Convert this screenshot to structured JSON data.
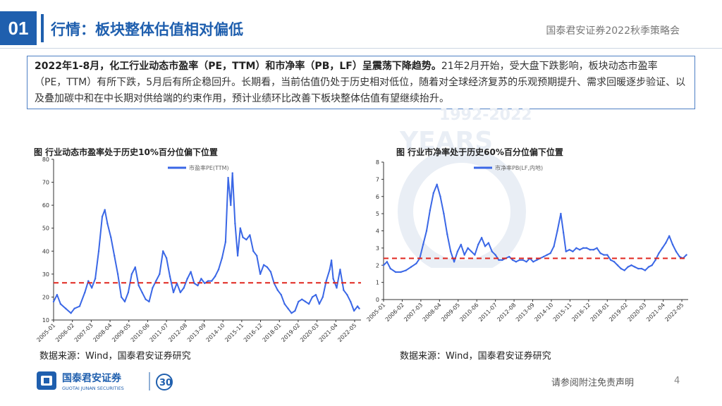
{
  "header": {
    "section_number": "01",
    "title": "行情：板块整体估值相对偏低",
    "brand": "国泰君安证券2022秋季策略会"
  },
  "summary": {
    "bold": "2022年1-8月，化工行业动态市盈率（PE，TTM）和市净率（PB，LF）呈震荡下降趋势。",
    "text": "21年2月开始，受大盘下跌影响，板块动态市盈率（PE，TTM）有所下跌，5月后有所企稳回升。长期看，当前估值仍处于历史相对低位，随着对全球经济复苏的乐观预期提升、需求回暖逐步验证、以及叠加碳中和在中长期对供给端的约束作用，预计业绩环比改善下板块整体估值有望继续抬升。"
  },
  "watermark": {
    "text": "1992-2022",
    "text2": "YEARS"
  },
  "chart_data": [
    {
      "type": "line",
      "title": "图  行业动态市盈率处于历史10%百分位偏下位置",
      "ylim": [
        10,
        80
      ],
      "yticks": [
        "10",
        "20",
        "30",
        "40",
        "50",
        "60",
        "70",
        "80"
      ],
      "xticks": [
        "2005-01",
        "2006-02",
        "2007-03",
        "2008-04",
        "2009-05",
        "2010-06",
        "2011-07",
        "2012-08",
        "2013-09",
        "2014-10",
        "2015-11",
        "2016-12",
        "2018-01",
        "2019-02",
        "2020-03",
        "2021-04",
        "2022-05"
      ],
      "series": [
        {
          "name": "市盈率PE(TTM)",
          "color": "#3a67e6",
          "x": [
            2005.0,
            2005.2,
            2005.4,
            2005.7,
            2006.0,
            2006.2,
            2006.5,
            2006.8,
            2007.0,
            2007.2,
            2007.4,
            2007.6,
            2007.8,
            2007.95,
            2008.1,
            2008.3,
            2008.5,
            2008.7,
            2008.9,
            2009.1,
            2009.3,
            2009.5,
            2009.7,
            2009.9,
            2010.1,
            2010.3,
            2010.5,
            2010.7,
            2010.9,
            2011.1,
            2011.3,
            2011.5,
            2011.7,
            2011.9,
            2012.1,
            2012.3,
            2012.5,
            2012.7,
            2012.9,
            2013.1,
            2013.3,
            2013.5,
            2013.7,
            2013.9,
            2014.1,
            2014.3,
            2014.5,
            2014.7,
            2014.9,
            2015.05,
            2015.2,
            2015.3,
            2015.45,
            2015.6,
            2015.75,
            2015.9,
            2016.1,
            2016.3,
            2016.5,
            2016.7,
            2016.9,
            2017.1,
            2017.3,
            2017.5,
            2017.7,
            2017.9,
            2018.1,
            2018.3,
            2018.5,
            2018.7,
            2018.9,
            2019.1,
            2019.3,
            2019.5,
            2019.7,
            2019.9,
            2020.1,
            2020.3,
            2020.5,
            2020.7,
            2020.9,
            2021.0,
            2021.1,
            2021.3,
            2021.5,
            2021.7,
            2021.9,
            2022.1,
            2022.3,
            2022.5,
            2022.6
          ],
          "values": [
            18,
            21,
            17,
            15,
            13,
            15,
            16,
            22,
            27,
            24,
            28,
            40,
            55,
            58,
            52,
            46,
            38,
            30,
            20,
            18,
            22,
            30,
            33,
            25,
            22,
            19,
            18,
            24,
            27,
            30,
            40,
            37,
            29,
            22,
            26,
            22,
            24,
            28,
            31,
            26,
            25,
            28,
            26,
            27,
            27,
            29,
            32,
            37,
            44,
            72,
            60,
            74,
            52,
            38,
            50,
            46,
            45,
            47,
            40,
            38,
            30,
            34,
            33,
            31,
            26,
            23,
            21,
            17,
            15,
            13,
            14,
            18,
            19,
            18,
            17,
            20,
            21,
            17,
            20,
            27,
            32,
            36,
            28,
            24,
            32,
            23,
            21,
            18,
            14,
            16,
            15
          ]
        }
      ],
      "reference_line": {
        "value": 26.2,
        "color": "#e0261e"
      }
    },
    {
      "type": "line",
      "title": "图  行业市净率处于历史60%百分位偏下位置",
      "ylim": [
        0,
        8
      ],
      "yticks": [
        "0",
        "1",
        "2",
        "3",
        "4",
        "5",
        "6",
        "7",
        "8"
      ],
      "xticks": [
        "2005-01",
        "2006-02",
        "2007-03",
        "2008-04",
        "2009-05",
        "2010-06",
        "2011-07",
        "2012-08",
        "2013-09",
        "2014-10",
        "2015-11",
        "2016-12",
        "2018-01",
        "2019-02",
        "2020-03",
        "2021-04",
        "2022-05"
      ],
      "series": [
        {
          "name": "市净率PB(LF,内地)",
          "color": "#3a67e6",
          "x": [
            2005.0,
            2005.2,
            2005.4,
            2005.7,
            2006.0,
            2006.3,
            2006.6,
            2006.9,
            2007.1,
            2007.3,
            2007.5,
            2007.7,
            2007.9,
            2008.1,
            2008.3,
            2008.5,
            2008.7,
            2008.9,
            2009.1,
            2009.3,
            2009.5,
            2009.7,
            2009.9,
            2010.1,
            2010.3,
            2010.5,
            2010.7,
            2010.9,
            2011.1,
            2011.3,
            2011.5,
            2011.7,
            2011.9,
            2012.1,
            2012.3,
            2012.5,
            2012.7,
            2012.9,
            2013.1,
            2013.3,
            2013.5,
            2013.7,
            2013.9,
            2014.1,
            2014.3,
            2014.5,
            2014.7,
            2014.9,
            2015.1,
            2015.3,
            2015.45,
            2015.6,
            2015.8,
            2016.0,
            2016.2,
            2016.4,
            2016.6,
            2016.8,
            2017.0,
            2017.2,
            2017.4,
            2017.6,
            2017.8,
            2018.0,
            2018.2,
            2018.4,
            2018.6,
            2018.8,
            2019.0,
            2019.2,
            2019.4,
            2019.6,
            2019.8,
            2020.0,
            2020.2,
            2020.4,
            2020.6,
            2020.8,
            2021.0,
            2021.2,
            2021.4,
            2021.6,
            2021.8,
            2022.0,
            2022.2,
            2022.4,
            2022.6
          ],
          "values": [
            2.0,
            2.2,
            1.8,
            1.6,
            1.6,
            1.7,
            1.9,
            2.1,
            2.4,
            3.2,
            4.0,
            5.2,
            6.2,
            6.7,
            6.0,
            5.0,
            3.8,
            2.8,
            2.2,
            2.8,
            3.2,
            2.6,
            3.0,
            2.8,
            2.6,
            3.2,
            3.6,
            3.1,
            3.3,
            2.8,
            2.6,
            2.3,
            2.3,
            2.4,
            2.5,
            2.3,
            2.2,
            2.3,
            2.3,
            2.2,
            2.4,
            2.2,
            2.3,
            2.4,
            2.5,
            2.6,
            2.7,
            3.1,
            4.0,
            5.0,
            3.9,
            2.8,
            2.9,
            2.8,
            3.0,
            2.9,
            3.0,
            3.0,
            2.9,
            2.9,
            3.0,
            2.7,
            2.6,
            2.6,
            2.3,
            2.2,
            2.0,
            1.8,
            1.7,
            1.9,
            2.0,
            1.9,
            1.8,
            1.8,
            1.7,
            1.9,
            2.0,
            2.3,
            2.7,
            3.0,
            3.3,
            3.7,
            3.2,
            2.8,
            2.5,
            2.4,
            2.6
          ]
        }
      ],
      "reference_line": {
        "value": 2.4,
        "color": "#e0261e"
      }
    }
  ],
  "sources": [
    "数据来源：Wind，国泰君安证券研究",
    "数据来源：Wind，国泰君安证券研究"
  ],
  "footer": {
    "logo_cn": "国泰君安证券",
    "logo_en": "GUOTAI JUNAN SECURITIES",
    "anniversary": "30",
    "note": "请参阅附注免责声明",
    "page": "4"
  },
  "colors": {
    "brand_blue": "#1f5fae",
    "line_blue": "#3a67e6",
    "ref_red": "#e0261e"
  }
}
